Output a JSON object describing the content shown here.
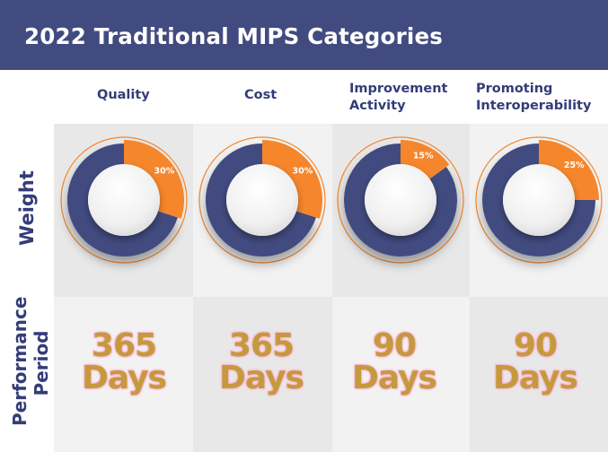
{
  "title": "2022 Traditional MIPS Categories",
  "row_labels": {
    "weight": "Weight",
    "performance_line1": "Performance",
    "performance_line2": "Period"
  },
  "colors": {
    "navy": "#424b80",
    "orange": "#f5862b",
    "period_text": "#c39b3c",
    "period_glow": "#ff9fcb"
  },
  "categories": [
    {
      "name_line1": "Quality",
      "name_line2": "",
      "weight_label": "30%",
      "weight": 0.3,
      "period_number": "365",
      "period_unit": "Days"
    },
    {
      "name_line1": "Cost",
      "name_line2": "",
      "weight_label": "30%",
      "weight": 0.3,
      "period_number": "365",
      "period_unit": "Days"
    },
    {
      "name_line1": "Improvement",
      "name_line2": "Activity",
      "weight_label": "15%",
      "weight": 0.15,
      "period_number": "90",
      "period_unit": "Days"
    },
    {
      "name_line1": "Promoting",
      "name_line2": "Interoperability",
      "weight_label": "25%",
      "weight": 0.25,
      "period_number": "90",
      "period_unit": "Days"
    }
  ]
}
